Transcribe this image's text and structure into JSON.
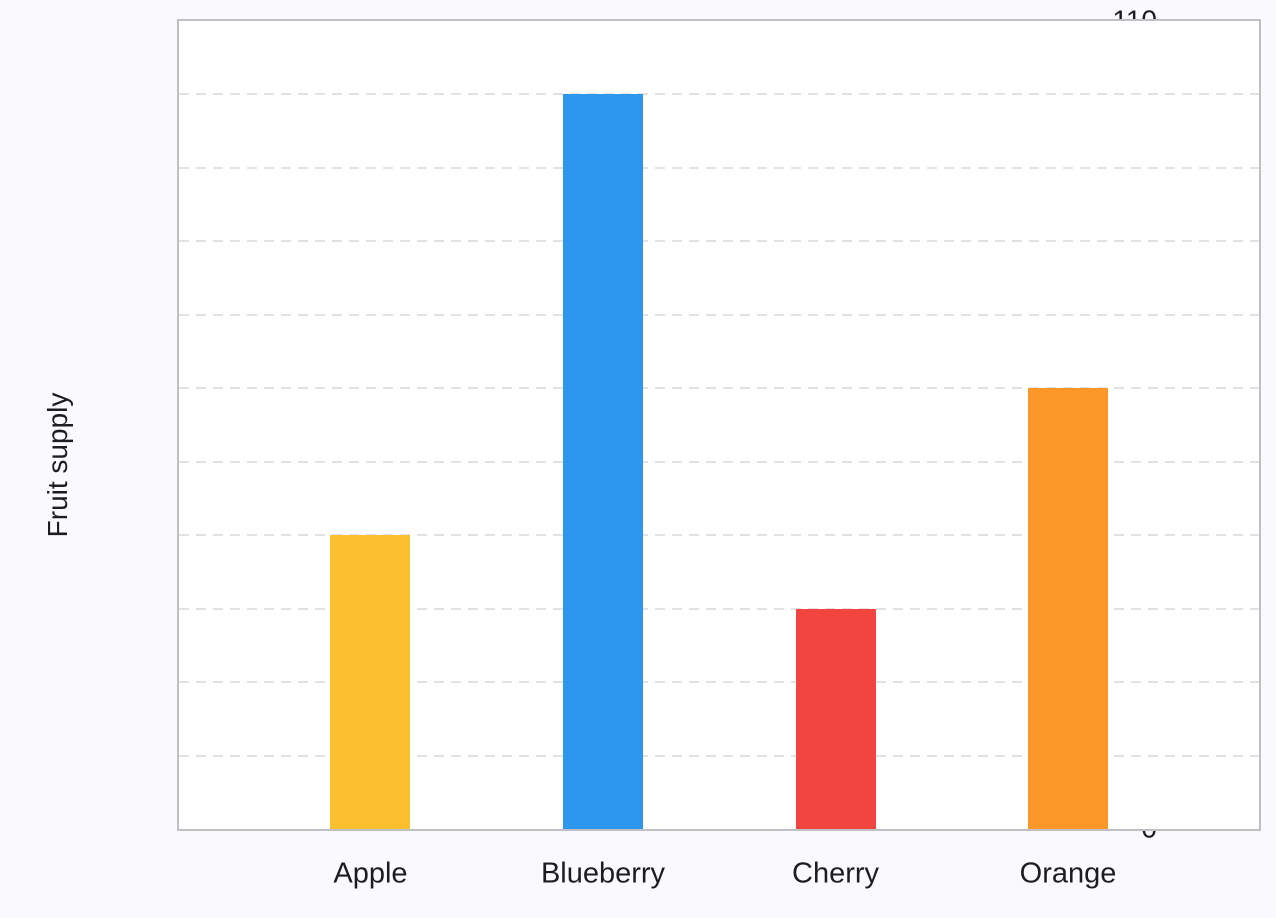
{
  "chart_data": {
    "type": "bar",
    "title": "",
    "categories": [
      "Apple",
      "Blueberry",
      "Cherry",
      "Orange"
    ],
    "values": [
      40,
      100,
      30,
      60
    ],
    "bar_colors": [
      "#FCC02E",
      "#2D97EE",
      "#F24540",
      "#FB9829"
    ],
    "xlabel": "",
    "ylabel": "Fruit supply",
    "ylim": [
      0,
      110
    ],
    "y_ticks": [
      0,
      10,
      20,
      30,
      40,
      50,
      60,
      70,
      80,
      90,
      100,
      110
    ],
    "grid": "horizontal-dashed",
    "legend_position": "none",
    "colors": {
      "page_background": "#FAFAFC",
      "plot_background": "#FFFFFF",
      "axis_border": "#BFBFC4",
      "gridline": "#E2E2E6",
      "text": "#1D1D21"
    }
  }
}
